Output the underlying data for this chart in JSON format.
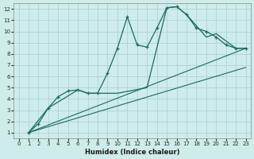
{
  "xlabel": "Humidex (Indice chaleur)",
  "bg_color": "#ceecea",
  "grid_color": "#aacfcc",
  "line_color": "#1a6b5e",
  "xlim": [
    -0.5,
    23.5
  ],
  "ylim": [
    0.5,
    12.5
  ],
  "xticks": [
    0,
    1,
    2,
    3,
    4,
    5,
    6,
    7,
    8,
    9,
    10,
    11,
    12,
    13,
    14,
    15,
    16,
    17,
    18,
    19,
    20,
    21,
    22,
    23
  ],
  "yticks": [
    1,
    2,
    3,
    4,
    5,
    6,
    7,
    8,
    9,
    10,
    11,
    12
  ],
  "curve_x": [
    1,
    2,
    3,
    4,
    5,
    6,
    7,
    8,
    9,
    10,
    11,
    12,
    13,
    14,
    15,
    16,
    17,
    18,
    19,
    20,
    21,
    22,
    23
  ],
  "curve_y": [
    1.0,
    1.8,
    3.2,
    4.2,
    4.7,
    4.8,
    4.5,
    4.5,
    6.3,
    8.5,
    11.3,
    8.8,
    8.6,
    10.3,
    12.1,
    12.2,
    11.5,
    10.3,
    10.0,
    9.5,
    8.8,
    8.5,
    8.5
  ],
  "smooth_x": [
    1,
    3,
    6,
    7,
    10,
    13,
    15,
    16,
    17,
    19,
    20,
    22,
    23
  ],
  "smooth_y": [
    1.0,
    3.2,
    4.8,
    4.5,
    4.5,
    5.0,
    12.1,
    12.2,
    11.5,
    9.5,
    9.8,
    8.5,
    8.5
  ],
  "line1_x": [
    1,
    23
  ],
  "line1_y": [
    1.0,
    8.5
  ],
  "line2_x": [
    1,
    23
  ],
  "line2_y": [
    1.0,
    6.8
  ]
}
